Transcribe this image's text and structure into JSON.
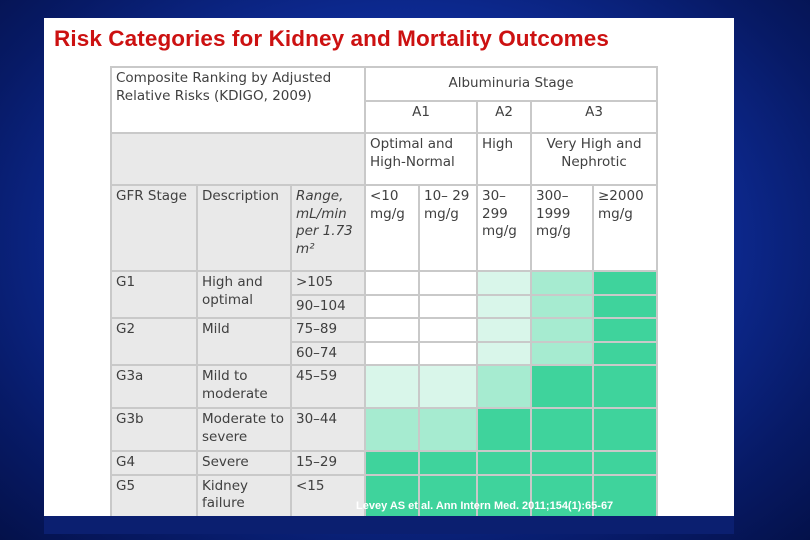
{
  "slide": {
    "title": "Risk Categories for Kidney and Mortality Outcomes",
    "citation": "Levey AS et al.  Ann Intern Med. 2011;154(1):65-67"
  },
  "table": {
    "ranking_title": "Composite Ranking by Adjusted Relative Risks (KDIGO, 2009)",
    "albuminuria_title": "Albuminuria Stage",
    "stages": [
      "A1",
      "A2",
      "A3"
    ],
    "stage_descriptions": [
      "Optimal and High-Normal",
      "High",
      "Very High and Nephrotic"
    ],
    "col_headers": {
      "gfr_stage": "GFR Stage",
      "description": "Description",
      "range": "Range, mL/min per 1.73 m²"
    },
    "albumin_ranges": [
      "<10 mg/g",
      "10– 29 mg/g",
      "30– 299 mg/g",
      "300– 1999 mg/g",
      "≥2000 mg/g"
    ],
    "rows": [
      {
        "stage": "G1",
        "description": "High and optimal",
        "ranges": [
          ">105",
          "90–104"
        ]
      },
      {
        "stage": "G2",
        "description": "Mild",
        "ranges": [
          "75–89",
          "60–74"
        ]
      },
      {
        "stage": "G3a",
        "description": "Mild to moderate",
        "ranges": [
          "45–59"
        ]
      },
      {
        "stage": "G3b",
        "description": "Moderate to severe",
        "ranges": [
          "30–44"
        ]
      },
      {
        "stage": "G4",
        "description": "Severe",
        "ranges": [
          "15–29"
        ]
      },
      {
        "stage": "G5",
        "description": "Kidney failure",
        "ranges": [
          "<15"
        ]
      }
    ],
    "risk_levels": [
      [
        "white",
        "white",
        "light",
        "mid",
        "dark"
      ],
      [
        "white",
        "white",
        "light",
        "mid",
        "dark"
      ],
      [
        "white",
        "white",
        "light",
        "mid",
        "dark"
      ],
      [
        "white",
        "white",
        "light",
        "mid",
        "dark"
      ],
      [
        "light",
        "light",
        "mid",
        "dark",
        "dark"
      ],
      [
        "mid",
        "mid",
        "dark",
        "dark",
        "dark"
      ],
      [
        "dark",
        "dark",
        "dark",
        "dark",
        "dark"
      ],
      [
        "dark",
        "dark",
        "dark",
        "dark",
        "dark"
      ]
    ],
    "risk_colors": {
      "white": "#ffffff",
      "light": "#d9f6ea",
      "mid": "#a6ebd0",
      "dark": "#3fd39c"
    }
  }
}
